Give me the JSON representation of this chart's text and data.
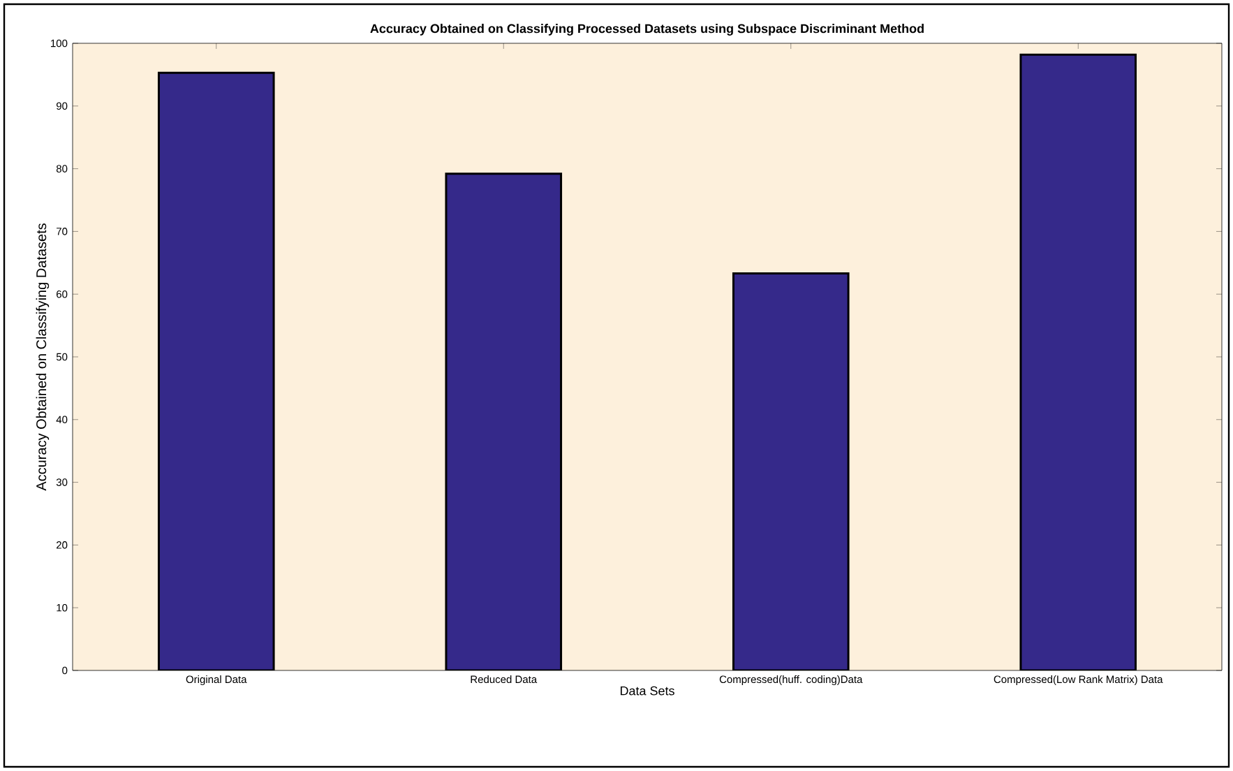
{
  "chart_data": {
    "type": "bar",
    "title": "**Accuracy Obtained on Classifying Processed Datasets using Subspace Discriminant Method**",
    "xlabel": "Data Sets",
    "ylabel": "Accuracy Obtained on Classifying Datasets",
    "categories": [
      "Original Data",
      "Reduced Data",
      "Compressed(huff. coding)Data",
      "Compressed(Low Rank Matrix) Data"
    ],
    "values": [
      95.3,
      79.2,
      63.3,
      98.2
    ],
    "color": "#35298a",
    "ylim": [
      0,
      100
    ],
    "yticks": [
      0,
      10,
      20,
      30,
      40,
      50,
      60,
      70,
      80,
      90,
      100
    ],
    "grid": false
  }
}
